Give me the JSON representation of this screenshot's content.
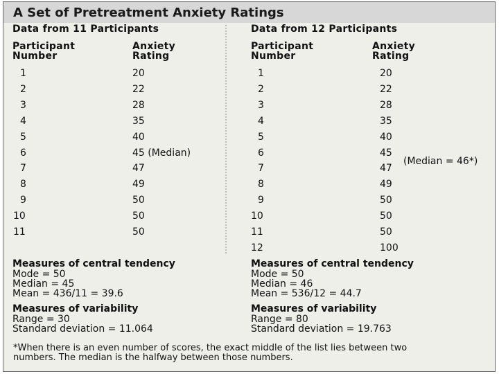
{
  "title": "A Set of Pretreatment Anxiety Ratings",
  "left": {
    "heading": "Data from 11 Participants",
    "col1_header": [
      "Participant",
      "Number"
    ],
    "col2_header": [
      "Anxiety",
      "Rating"
    ],
    "rows": [
      {
        "n": "1",
        "r": "20"
      },
      {
        "n": "2",
        "r": "22"
      },
      {
        "n": "3",
        "r": "28"
      },
      {
        "n": "4",
        "r": "35"
      },
      {
        "n": "5",
        "r": "40"
      },
      {
        "n": "6",
        "r": "45 (Median)"
      },
      {
        "n": "7",
        "r": "47"
      },
      {
        "n": "8",
        "r": "49"
      },
      {
        "n": "9",
        "r": "50"
      },
      {
        "n": "10",
        "r": "50"
      },
      {
        "n": "11",
        "r": "50"
      }
    ],
    "central_heading": "Measures of central tendency",
    "central": [
      "Mode = 50",
      "Median = 45",
      "Mean = 436/11 = 39.6"
    ],
    "variability_heading": "Measures of variability",
    "variability": [
      "Range = 30",
      "Standard deviation = 11.064"
    ]
  },
  "right": {
    "heading": "Data from 12 Participants",
    "col1_header": [
      "Participant",
      "Number"
    ],
    "col2_header": [
      "Anxiety",
      "Rating"
    ],
    "rows": [
      {
        "n": "1",
        "r": "20"
      },
      {
        "n": "2",
        "r": "22"
      },
      {
        "n": "3",
        "r": "28"
      },
      {
        "n": "4",
        "r": "35"
      },
      {
        "n": "5",
        "r": "40"
      },
      {
        "n": "6",
        "r": "45"
      },
      {
        "n": "7",
        "r": "47"
      },
      {
        "n": "8",
        "r": "49"
      },
      {
        "n": "9",
        "r": "50"
      },
      {
        "n": "10",
        "r": "50"
      },
      {
        "n": "11",
        "r": "50"
      },
      {
        "n": "12",
        "r": "100"
      }
    ],
    "median_note": "(Median = 46*)",
    "central_heading": "Measures of central tendency",
    "central": [
      "Mode = 50",
      "Median = 46",
      "Mean = 536/12 = 44.7"
    ],
    "variability_heading": "Measures of variability",
    "variability": [
      "Range = 80",
      "Standard deviation = 19.763"
    ]
  },
  "footnote": [
    "*When there is an even number of scores, the exact middle of the list lies between two",
    "numbers. The median is the halfway between those numbers."
  ]
}
